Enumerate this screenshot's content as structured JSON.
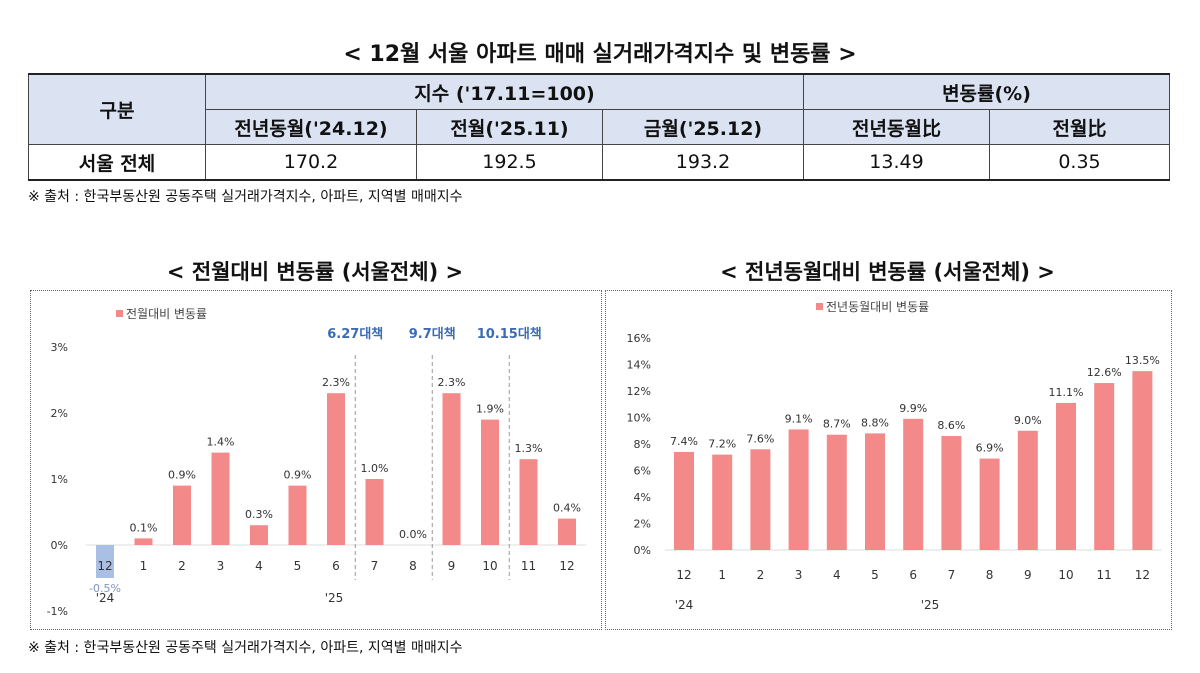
{
  "title": "< 12월 서울 아파트 매매 실거래가격지수 및 변동률 >",
  "table": {
    "h_category": "구분",
    "h_index": "지수 ('17.11=100)",
    "h_rate": "변동률(%)",
    "sub": [
      "전년동월('24.12)",
      "전월('25.11)",
      "금월('25.12)",
      "전년동월比",
      "전월比"
    ],
    "row": {
      "label": "서울 전체",
      "values": [
        "170.2",
        "192.5",
        "193.2",
        "13.49",
        "0.35"
      ]
    }
  },
  "source1": "※ 출처 : 한국부동산원 공동주택 실거래가격지수, 아파트, 지역별 매매지수",
  "source2": "※ 출처 : 한국부동산원 공동주택 실거래가격지수, 아파트, 지역별 매매지수",
  "chart_titles": [
    "< 전월대비 변동률 (서울전체) >",
    "< 전년동월대비 변동률 (서울전체) >"
  ],
  "chart_data": [
    {
      "type": "bar",
      "legend": "전월대비 변동률",
      "legend_position": "top-left",
      "categories": [
        "12",
        "1",
        "2",
        "3",
        "4",
        "5",
        "6",
        "7",
        "8",
        "9",
        "10",
        "11",
        "12"
      ],
      "year_labels": [
        "'24",
        "'25"
      ],
      "values": [
        -0.5,
        0.1,
        0.9,
        1.4,
        0.3,
        0.9,
        2.3,
        1.0,
        0.0,
        2.3,
        1.9,
        1.3,
        0.4
      ],
      "labels": [
        "-0.5%",
        "0.1%",
        "0.9%",
        "1.4%",
        "0.3%",
        "0.9%",
        "2.3%",
        "1.0%",
        "0.0%",
        "2.3%",
        "1.9%",
        "1.3%",
        "0.4%"
      ],
      "yticks": [
        "3%",
        "2%",
        "1%",
        "0%",
        "-1%"
      ],
      "ylim": [
        -1,
        3
      ],
      "annotations": [
        {
          "text": "6.27대책",
          "after": "6"
        },
        {
          "text": "9.7대책",
          "after": "8"
        },
        {
          "text": "10.15대책",
          "after": "10"
        }
      ],
      "colors": {
        "bar": "#f4898a",
        "negative": "#a9bfe3",
        "annotation": "#3d6bb3"
      }
    },
    {
      "type": "bar",
      "legend": "전년동월대비 변동률",
      "legend_position": "top-center",
      "categories": [
        "12",
        "1",
        "2",
        "3",
        "4",
        "5",
        "6",
        "7",
        "8",
        "9",
        "10",
        "11",
        "12"
      ],
      "year_labels": [
        "'24",
        "'25"
      ],
      "values": [
        7.4,
        7.2,
        7.6,
        9.1,
        8.7,
        8.8,
        9.9,
        8.6,
        6.9,
        9.0,
        11.1,
        12.6,
        13.5
      ],
      "labels": [
        "7.4%",
        "7.2%",
        "7.6%",
        "9.1%",
        "8.7%",
        "8.8%",
        "9.9%",
        "8.6%",
        "6.9%",
        "9.0%",
        "11.1%",
        "12.6%",
        "13.5%"
      ],
      "yticks": [
        "16%",
        "14%",
        "12%",
        "10%",
        "8%",
        "6%",
        "4%",
        "2%",
        "0%"
      ],
      "ylim": [
        0,
        16
      ],
      "colors": {
        "bar": "#f4898a"
      }
    }
  ]
}
